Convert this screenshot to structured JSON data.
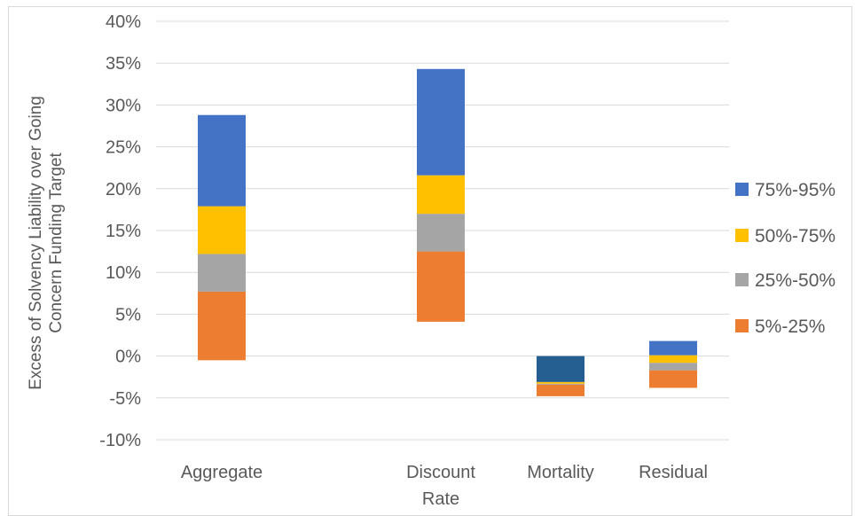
{
  "chart_data": {
    "type": "bar",
    "stacked": true,
    "title": "",
    "xlabel": "",
    "ylabel_lines": [
      "Excess of Solvency Liability over Going",
      "Concern Funding Target"
    ],
    "ylim": [
      -10,
      40
    ],
    "y_ticks": [
      -10,
      -5,
      0,
      5,
      10,
      15,
      20,
      25,
      30,
      35,
      40
    ],
    "y_tick_labels": [
      "-10%",
      "-5%",
      "0%",
      "5%",
      "10%",
      "15%",
      "20%",
      "25%",
      "30%",
      "35%",
      "40%"
    ],
    "grid": true,
    "legend_position": "right",
    "categories": [
      {
        "label_lines": [
          "Aggregate"
        ],
        "slot": 0
      },
      {
        "label_lines": [
          "Discount",
          "Rate"
        ],
        "slot": 2
      },
      {
        "label_lines": [
          "Mortality"
        ],
        "slot": 3
      },
      {
        "label_lines": [
          "Residual"
        ],
        "slot": 4
      }
    ],
    "series": [
      {
        "name": "5%-25%",
        "color": "#ED7D31",
        "ranges": [
          [
            -0.5,
            7.7
          ],
          [
            4.1,
            12.5
          ],
          [
            -4.8,
            -3.4
          ],
          [
            -3.8,
            -1.7
          ]
        ]
      },
      {
        "name": "25%-50%",
        "color": "#A5A5A5",
        "ranges": [
          [
            7.7,
            12.2
          ],
          [
            12.5,
            17.0
          ],
          [
            -3.4,
            -3.3
          ],
          [
            -1.7,
            -0.8
          ]
        ]
      },
      {
        "name": "50%-75%",
        "color": "#FFC000",
        "ranges": [
          [
            12.2,
            17.9
          ],
          [
            17.0,
            21.6
          ],
          [
            -3.3,
            -3.1
          ],
          [
            -0.8,
            0.1
          ]
        ]
      },
      {
        "name": "75%-95%",
        "color": "#4472C4",
        "alt_color": "#255E91",
        "ranges": [
          [
            17.9,
            28.8
          ],
          [
            21.6,
            34.3
          ],
          [
            -3.1,
            0.0
          ],
          [
            0.1,
            1.8
          ]
        ]
      }
    ],
    "legend_order": [
      "75%-95%",
      "50%-75%",
      "25%-50%",
      "5%-25%"
    ]
  }
}
